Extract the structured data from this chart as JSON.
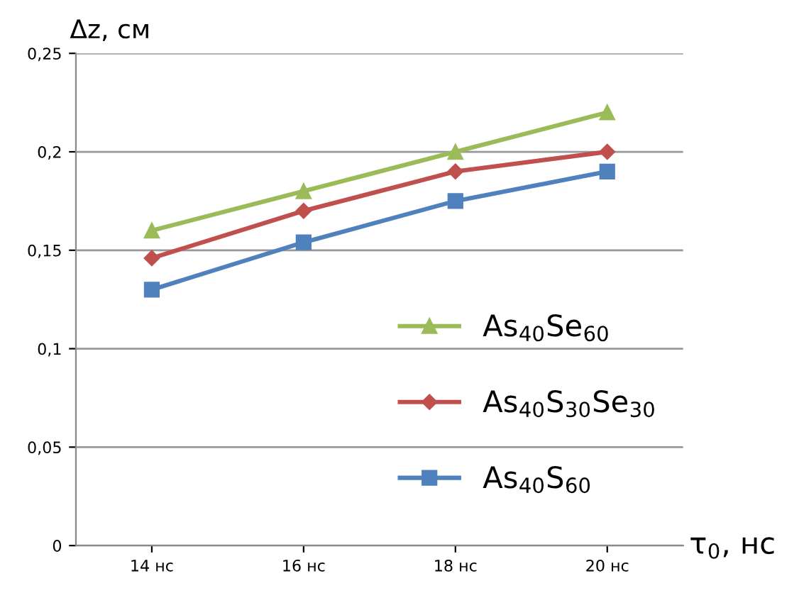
{
  "chart_data": {
    "type": "line",
    "xlabel": "τ$_{0}$, нс",
    "ylabel": "Δz, см",
    "categories": [
      "14 нс",
      "16 нс",
      "18 нс",
      "20 нс"
    ],
    "series": [
      {
        "name": "As$_{40}$Se$_{60}$",
        "color": "#9bbb59",
        "marker": "triangle",
        "values": [
          0.16,
          0.18,
          0.2,
          0.22
        ]
      },
      {
        "name": "As$_{40}$S$_{30}$Se$_{30}$",
        "color": "#c0504d",
        "marker": "diamond",
        "values": [
          0.146,
          0.17,
          0.19,
          0.2
        ]
      },
      {
        "name": "As$_{40}$S$_{60}$",
        "color": "#4f81bd",
        "marker": "square",
        "values": [
          0.13,
          0.154,
          0.175,
          0.19
        ]
      }
    ],
    "ylim": [
      0,
      0.25
    ],
    "yticks": [
      {
        "value": 0,
        "label": "0"
      },
      {
        "value": 0.05,
        "label": "0,05"
      },
      {
        "value": 0.1,
        "label": "0,1"
      },
      {
        "value": 0.15,
        "label": "0,15"
      },
      {
        "value": 0.2,
        "label": "0,2"
      },
      {
        "value": 0.25,
        "label": "0,25"
      }
    ],
    "grid": "y",
    "legend": "lower right",
    "line_style": "solid"
  }
}
